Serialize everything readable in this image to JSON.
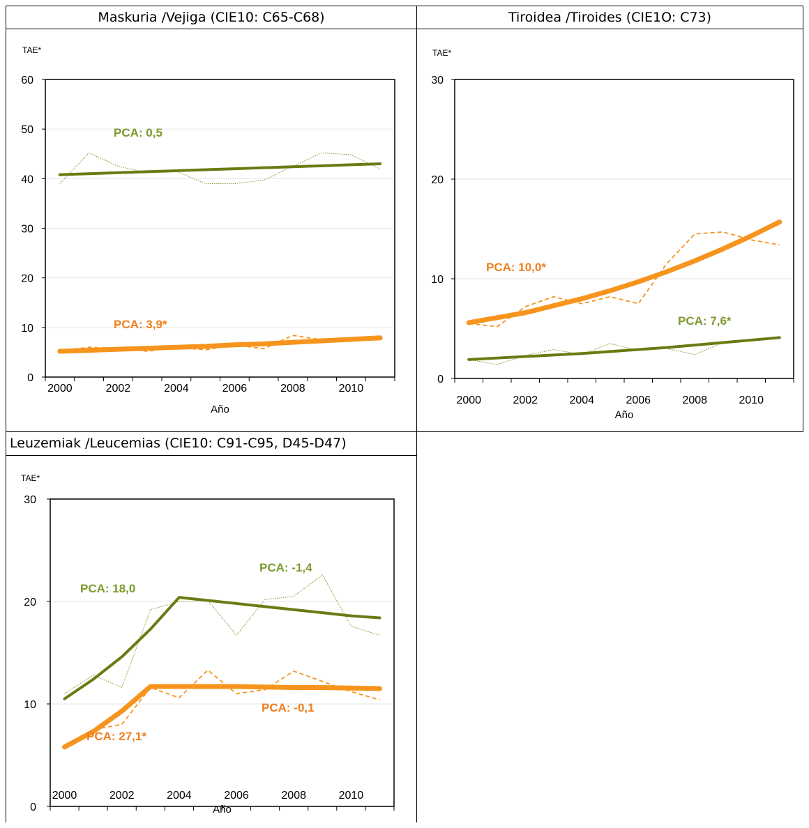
{
  "colors": {
    "green": "#7a8c1a",
    "green_dark": "#6b7a12",
    "orange": "#f7941d",
    "pca_green": "#7b9a2f",
    "pca_orange": "#f07f1e"
  },
  "panels": [
    {
      "title": "Maskuria /Vejiga (CIE10: C65-C68)"
    },
    {
      "title": "Tiroidea /Tiroides (CIE1O: C73)"
    },
    {
      "title": "Leuzemiak /Leucemias (CIE10: C91-C95, D45-D47)"
    }
  ],
  "chart_data": [
    {
      "type": "line",
      "ylabel": "TAE*",
      "xlabel": "Año",
      "ylim": [
        0,
        60
      ],
      "yticks": [
        0,
        10,
        20,
        30,
        40,
        50,
        60
      ],
      "xticks": [
        2000,
        2002,
        2004,
        2006,
        2008,
        2010
      ],
      "x": [
        2000,
        2001,
        2002,
        2003,
        2004,
        2005,
        2006,
        2007,
        2008,
        2009,
        2010,
        2011
      ],
      "series": [
        {
          "color": "green",
          "style": "observed",
          "values": [
            39,
            45.2,
            42.5,
            41.2,
            41.5,
            39.0,
            39.0,
            39.7,
            42.5,
            45.2,
            44.8,
            42.0
          ]
        },
        {
          "color": "green",
          "style": "trend",
          "values": [
            40.8,
            41.0,
            41.2,
            41.4,
            41.6,
            41.8,
            42.0,
            42.2,
            42.4,
            42.6,
            42.8,
            43.0
          ]
        },
        {
          "color": "orange",
          "style": "observed",
          "values": [
            5.3,
            6.0,
            5.8,
            5.2,
            6.0,
            5.5,
            6.5,
            5.7,
            8.4,
            7.5,
            7.2,
            7.8
          ]
        },
        {
          "color": "orange",
          "style": "trend",
          "values": [
            5.2,
            5.4,
            5.6,
            5.8,
            6.0,
            6.2,
            6.5,
            6.7,
            7.0,
            7.3,
            7.6,
            7.9
          ]
        }
      ],
      "annotations": [
        {
          "text": "PCA: 0,5",
          "color": "green"
        },
        {
          "text": "PCA: 3,9*",
          "color": "orange"
        }
      ]
    },
    {
      "type": "line",
      "ylabel": "TAE*",
      "xlabel": "Año",
      "ylim": [
        0,
        30
      ],
      "yticks": [
        0,
        10,
        20,
        30
      ],
      "xticks": [
        2000,
        2002,
        2004,
        2006,
        2008,
        2010
      ],
      "x": [
        2000,
        2001,
        2002,
        2003,
        2004,
        2005,
        2006,
        2007,
        2008,
        2009,
        2010,
        2011
      ],
      "series": [
        {
          "color": "orange",
          "style": "observed",
          "values": [
            5.5,
            5.2,
            7.2,
            8.2,
            7.5,
            8.2,
            7.5,
            11.5,
            14.5,
            14.7,
            13.9,
            13.4
          ]
        },
        {
          "color": "orange",
          "style": "trend",
          "values": [
            5.6,
            6.1,
            6.6,
            7.3,
            8.0,
            8.8,
            9.7,
            10.7,
            11.8,
            13.0,
            14.3,
            15.7
          ]
        },
        {
          "color": "green",
          "style": "observed",
          "values": [
            1.9,
            1.4,
            2.3,
            2.9,
            2.4,
            3.5,
            2.8,
            3.0,
            2.4,
            3.6,
            3.8,
            4.1
          ]
        },
        {
          "color": "green",
          "style": "trend",
          "values": [
            1.9,
            2.05,
            2.2,
            2.35,
            2.5,
            2.7,
            2.9,
            3.1,
            3.35,
            3.6,
            3.85,
            4.1
          ]
        }
      ],
      "annotations": [
        {
          "text": "PCA: 10,0*",
          "color": "orange"
        },
        {
          "text": "PCA: 7,6*",
          "color": "green"
        }
      ]
    },
    {
      "type": "line",
      "ylabel": "TAE*",
      "xlabel": "Año",
      "ylim": [
        0,
        30
      ],
      "yticks": [
        0,
        10,
        20,
        30
      ],
      "xticks": [
        2000,
        2002,
        2004,
        2006,
        2008,
        2010
      ],
      "x": [
        2000,
        2001,
        2002,
        2003,
        2004,
        2005,
        2006,
        2007,
        2008,
        2009,
        2010,
        2011
      ],
      "series": [
        {
          "color": "green",
          "style": "observed",
          "values": [
            11.0,
            12.8,
            11.6,
            19.2,
            20.0,
            20.1,
            16.7,
            20.2,
            20.5,
            22.6,
            17.6,
            16.7
          ]
        },
        {
          "color": "green",
          "style": "trend",
          "values": [
            10.5,
            12.4,
            14.6,
            17.3,
            20.4,
            20.1,
            19.8,
            19.5,
            19.2,
            18.9,
            18.6,
            18.4
          ]
        },
        {
          "color": "orange",
          "style": "observed",
          "values": [
            5.8,
            7.5,
            8.0,
            11.6,
            10.6,
            13.3,
            11.0,
            11.4,
            13.2,
            12.2,
            11.2,
            10.4
          ]
        },
        {
          "color": "orange",
          "style": "trend",
          "values": [
            5.8,
            7.3,
            9.3,
            11.7,
            11.7,
            11.7,
            11.7,
            11.65,
            11.6,
            11.6,
            11.55,
            11.5
          ]
        }
      ],
      "annotations": [
        {
          "text": "PCA: 18,0",
          "color": "green"
        },
        {
          "text": "PCA: -1,4",
          "color": "green"
        },
        {
          "text": "PCA: -0,1",
          "color": "orange"
        },
        {
          "text": "PCA: 27,1*",
          "color": "orange"
        }
      ]
    }
  ]
}
